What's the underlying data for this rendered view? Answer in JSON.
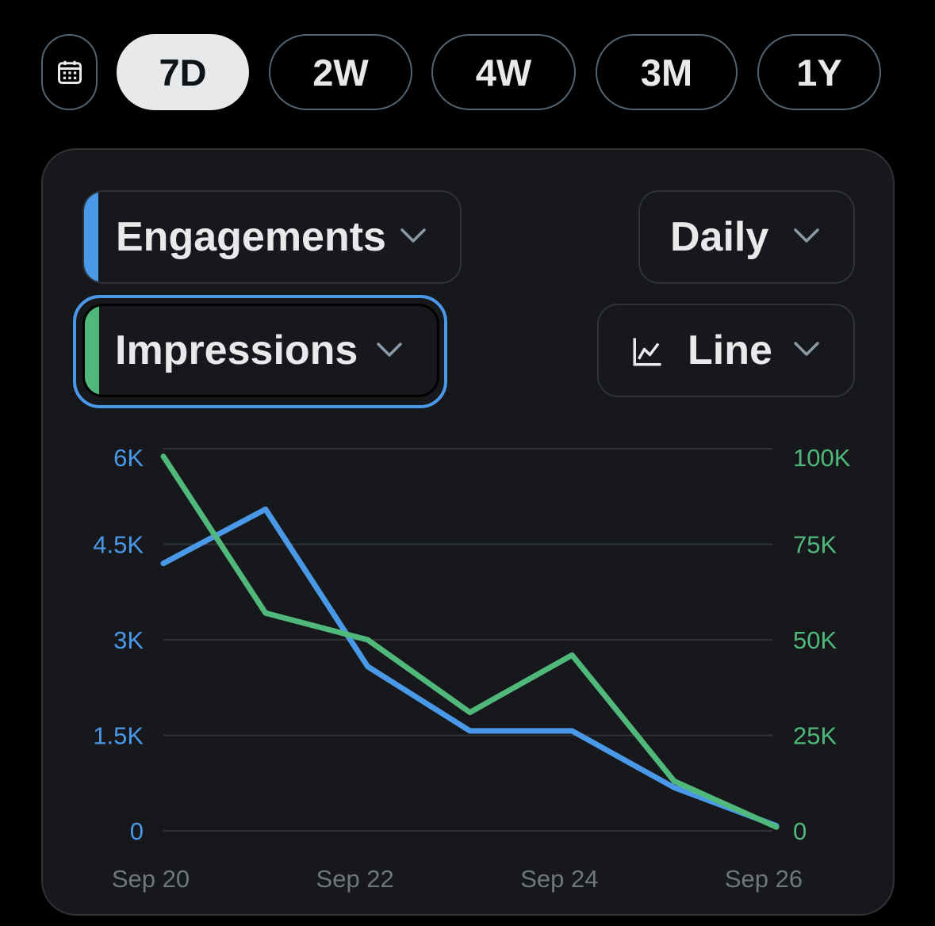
{
  "range_buttons": [
    {
      "label": "7D",
      "active": true
    },
    {
      "label": "2W",
      "active": false
    },
    {
      "label": "4W",
      "active": false
    },
    {
      "label": "3M",
      "active": false
    },
    {
      "label": "1Y",
      "active": false
    }
  ],
  "calendar_icon": "calendar-icon",
  "controls": {
    "metric_primary": {
      "label": "Engagements",
      "color": "#4a99e9"
    },
    "metric_secondary": {
      "label": "Impressions",
      "color": "#50b87a"
    },
    "interval": {
      "label": "Daily"
    },
    "chart_type": {
      "label": "Line",
      "icon": "line-chart-icon"
    }
  },
  "chart_data": {
    "type": "line",
    "x": [
      "Sep 20",
      "Sep 21",
      "Sep 22",
      "Sep 23",
      "Sep 24",
      "Sep 25",
      "Sep 26"
    ],
    "x_tick_labels": [
      "Sep 20",
      "Sep 22",
      "Sep 24",
      "Sep 26"
    ],
    "series": [
      {
        "name": "Engagements",
        "axis": "left",
        "color": "#4a99e9",
        "values": [
          4200,
          5050,
          2580,
          1570,
          1570,
          680,
          80
        ]
      },
      {
        "name": "Impressions",
        "axis": "right",
        "color": "#50b87a",
        "values": [
          98000,
          57000,
          50000,
          31000,
          46000,
          13000,
          1000
        ]
      }
    ],
    "y_left": {
      "ticks": [
        "0",
        "1.5K",
        "3K",
        "4.5K",
        "6K"
      ],
      "ylim": [
        0,
        6000
      ],
      "color": "#4a99e9"
    },
    "y_right": {
      "ticks": [
        "0",
        "25K",
        "50K",
        "75K",
        "100K"
      ],
      "ylim": [
        0,
        100000
      ],
      "color": "#50b87a"
    },
    "grid": true
  }
}
